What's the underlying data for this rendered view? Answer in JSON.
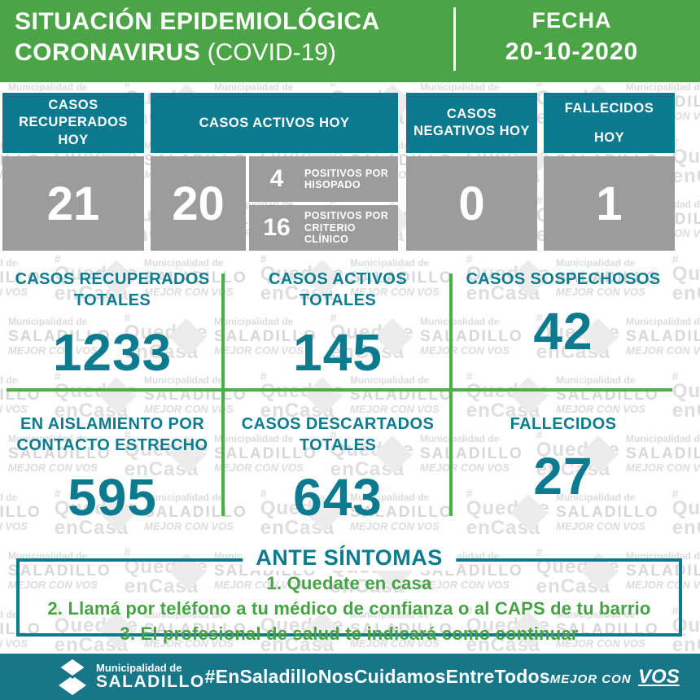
{
  "header": {
    "title_line1": "SITUACIÓN EPIDEMIOLÓGICA",
    "title_line2_bold": "CORONAVIRUS",
    "title_line2_light": " (COVID-19)",
    "fecha_label": "FECHA",
    "fecha_value": "20-10-2020"
  },
  "today_boxes": {
    "recovered": {
      "label": "CASOS RECUPERADOS HOY",
      "value": "21"
    },
    "active": {
      "label": "CASOS ACTIVOS HOY",
      "value": "20",
      "breakdown": [
        {
          "value": "4",
          "label": "POSITIVOS POR HISOPADO"
        },
        {
          "value": "16",
          "label": "POSITIVOS POR CRITERIO CLÍNICO"
        }
      ]
    },
    "negative": {
      "label": "CASOS NEGATIVOS HOY",
      "value": "0"
    },
    "deceased": {
      "label": "FALLECIDOS HOY",
      "value": "1"
    }
  },
  "totals": [
    {
      "label": "CASOS RECUPERADOS TOTALES",
      "value": "1233"
    },
    {
      "label": "CASOS ACTIVOS TOTALES",
      "value": "145"
    },
    {
      "label": "CASOS SOSPECHOSOS",
      "value": "42"
    },
    {
      "label": "EN AISLAMIENTO POR CONTACTO ESTRECHO",
      "value": "595"
    },
    {
      "label": "CASOS DESCARTADOS TOTALES",
      "value": "643"
    },
    {
      "label": "FALLECIDOS",
      "value": "27"
    }
  ],
  "symptoms": {
    "title": "ANTE SÍNTOMAS",
    "items": [
      "1. Quedate en casa",
      "2. Llamá por teléfono a tu médico de confianza o al CAPS de tu barrio",
      "3. El profesional de salud te indicará como continuar"
    ]
  },
  "footer": {
    "org_line1": "Municipalidad de",
    "org_line2": "SALADILLO",
    "hashtag": "#EnSaladilloNosCuidamosEntreTodos",
    "slogan_pre": "MEJOR CON",
    "slogan_vos": "VOS"
  },
  "watermark": {
    "org_line1": "Municipalidad de",
    "org_line2": "SALADILLO",
    "org_line3": "MEJOR CON VOS",
    "hash": "#",
    "q_line1": "Quedate",
    "q_line2": "enCasa"
  },
  "colors": {
    "header_green": "#4ba445",
    "line_green": "#4cad4a",
    "item_green": "#47a245",
    "teal_text": "#0d7b8f",
    "teal_box_header": "#0c7a8e",
    "footer_teal": "#177789",
    "box_gray": "#9c9c9c",
    "watermark_gray": "#dcdcdc"
  }
}
